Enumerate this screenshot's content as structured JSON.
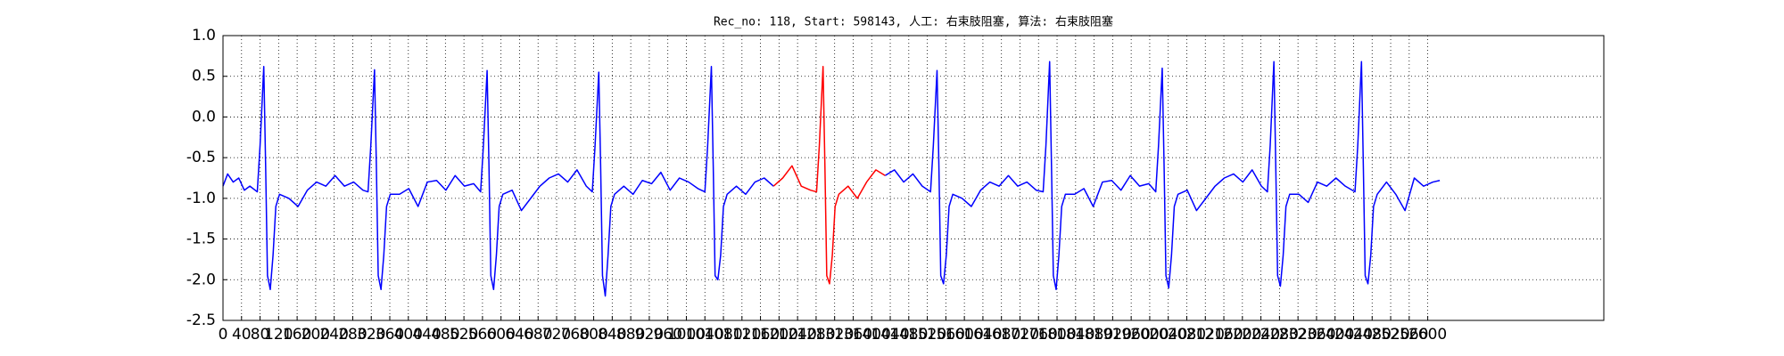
{
  "chart_data": {
    "type": "line",
    "title": "Rec_no: 118, Start: 598143, 人工: 右束肢阻塞, 算法: 右束肢阻塞",
    "xlim": [
      0,
      2980
    ],
    "xticks": [
      0,
      40,
      80,
      120,
      160,
      200,
      240,
      280,
      320,
      360,
      400,
      440,
      480,
      520,
      560,
      600,
      640,
      680,
      720,
      760,
      800,
      840,
      880,
      920,
      960,
      1000,
      1040,
      1080,
      1120,
      1160,
      1200,
      1240,
      1280,
      1320,
      1360,
      1400,
      1440,
      1480,
      1520,
      1560,
      1600,
      1640,
      1680,
      1720,
      1760,
      1800,
      1840,
      1880,
      1920,
      1960,
      2000,
      2040,
      2080,
      2120,
      2160,
      2200,
      2240,
      2280,
      2320,
      2360,
      2400,
      2440,
      2480,
      2520,
      2560,
      2600
    ],
    "ylim": [
      -2.5,
      1.0
    ],
    "yticks": [
      {
        "value": -2.5,
        "label": "-2.5"
      },
      {
        "value": -2,
        "label": "-2.0"
      },
      -1.5,
      {
        "value": -1,
        "label": "-1.0"
      },
      -0.5,
      {
        "value": 0,
        "label": "0.0"
      },
      0.5,
      {
        "value": 1,
        "label": "1.0"
      }
    ],
    "grid": true,
    "series": [
      {
        "color": "#0000ff",
        "x": [
          0,
          10,
          22,
          34,
          46,
          58,
          74,
          80,
          88,
          92,
          96,
          102,
          108,
          114,
          122,
          142,
          162,
          182,
          202,
          222,
          242,
          262,
          282,
          302,
          313,
          319,
          327,
          331,
          335,
          341,
          347,
          353,
          361,
          381,
          401,
          421,
          441,
          461,
          481,
          501,
          521,
          541,
          556,
          562,
          570,
          574,
          578,
          584,
          590,
          596,
          604,
          624,
          644,
          664,
          684,
          704,
          724,
          744,
          764,
          784,
          797,
          803,
          811,
          815,
          819,
          825,
          831,
          837,
          845,
          865,
          885,
          905,
          925,
          945,
          965,
          985,
          1005,
          1025,
          1040,
          1046,
          1054,
          1058,
          1062,
          1068,
          1074,
          1080,
          1088,
          1108,
          1128,
          1148,
          1168,
          1188,
          1300,
          1429,
          1449,
          1469,
          1489,
          1509,
          1527,
          1533,
          1541,
          1545,
          1549,
          1555,
          1561,
          1567,
          1575,
          1595,
          1615,
          1635,
          1655,
          1675,
          1695,
          1715,
          1735,
          1755,
          1770,
          1776,
          1784,
          1788,
          1792,
          1798,
          1804,
          1810,
          1818,
          1838,
          1858,
          1878,
          1898,
          1918,
          1938,
          1958,
          1978,
          1998,
          2013,
          2019,
          2027,
          2031,
          2035,
          2041,
          2047,
          2053,
          2061,
          2081,
          2101,
          2121,
          2141,
          2161,
          2181,
          2201,
          2221,
          2241,
          2254,
          2260,
          2268,
          2272,
          2276,
          2282,
          2288,
          2294,
          2302,
          2322,
          2342,
          2362,
          2382,
          2402,
          2422,
          2443,
          2449,
          2457,
          2461,
          2465,
          2471,
          2477,
          2483,
          2491,
          2511,
          2531,
          2551,
          2571,
          2591,
          2611,
          2626
        ],
        "values": [
          -0.85,
          -0.7,
          -0.8,
          -0.75,
          -0.9,
          -0.85,
          -0.92,
          -0.35,
          0.62,
          -0.6,
          -1.95,
          -2.12,
          -1.7,
          -1.1,
          -0.95,
          -1.0,
          -1.1,
          -0.9,
          -0.8,
          -0.85,
          -0.72,
          -0.85,
          -0.8,
          -0.9,
          -0.92,
          -0.35,
          0.58,
          -0.6,
          -1.95,
          -2.12,
          -1.7,
          -1.1,
          -0.95,
          -0.95,
          -0.88,
          -1.1,
          -0.8,
          -0.78,
          -0.9,
          -0.72,
          -0.85,
          -0.82,
          -0.92,
          -0.35,
          0.57,
          -0.6,
          -1.95,
          -2.12,
          -1.7,
          -1.1,
          -0.95,
          -0.9,
          -1.15,
          -1.0,
          -0.85,
          -0.75,
          -0.7,
          -0.8,
          -0.65,
          -0.85,
          -0.92,
          -0.35,
          0.55,
          -0.6,
          -1.95,
          -2.2,
          -1.7,
          -1.1,
          -0.95,
          -0.85,
          -0.95,
          -0.78,
          -0.82,
          -0.68,
          -0.9,
          -0.75,
          -0.8,
          -0.88,
          -0.92,
          -0.35,
          0.62,
          -0.6,
          -1.95,
          -2.0,
          -1.7,
          -1.1,
          -0.95,
          -0.85,
          -0.95,
          -0.8,
          -0.75,
          -0.85,
          null,
          -0.72,
          -0.65,
          -0.8,
          -0.7,
          -0.85,
          -0.92,
          -0.35,
          0.57,
          -0.6,
          -1.95,
          -2.05,
          -1.7,
          -1.1,
          -0.95,
          -1.0,
          -1.1,
          -0.9,
          -0.8,
          -0.85,
          -0.72,
          -0.85,
          -0.8,
          -0.9,
          -0.92,
          -0.35,
          0.68,
          -0.6,
          -1.95,
          -2.12,
          -1.7,
          -1.1,
          -0.95,
          -0.95,
          -0.88,
          -1.1,
          -0.8,
          -0.78,
          -0.9,
          -0.72,
          -0.85,
          -0.82,
          -0.92,
          -0.35,
          0.6,
          -0.6,
          -1.95,
          -2.1,
          -1.7,
          -1.1,
          -0.95,
          -0.9,
          -1.15,
          -1.0,
          -0.85,
          -0.75,
          -0.7,
          -0.8,
          -0.65,
          -0.85,
          -0.92,
          -0.35,
          0.68,
          -0.6,
          -1.95,
          -2.08,
          -1.7,
          -1.1,
          -0.95,
          -0.95,
          -1.05,
          -0.8,
          -0.85,
          -0.75,
          -0.85,
          -0.92,
          -0.35,
          0.68,
          -0.6,
          -1.95,
          -2.05,
          -1.7,
          -1.1,
          -0.95,
          -0.8,
          -0.95,
          -1.15,
          -0.75,
          -0.85,
          -0.8,
          -0.78
        ]
      },
      {
        "color": "#ff0000",
        "x": [
          1188,
          1208,
          1228,
          1248,
          1268,
          1281,
          1287,
          1295,
          1299,
          1303,
          1309,
          1315,
          1321,
          1329,
          1349,
          1369,
          1389,
          1409,
          1429
        ],
        "values": [
          -0.85,
          -0.75,
          -0.6,
          -0.85,
          -0.9,
          -0.92,
          -0.35,
          0.62,
          -0.6,
          -1.95,
          -2.05,
          -1.7,
          -1.1,
          -0.95,
          -0.85,
          -1.0,
          -0.8,
          -0.65,
          -0.72
        ]
      }
    ]
  }
}
